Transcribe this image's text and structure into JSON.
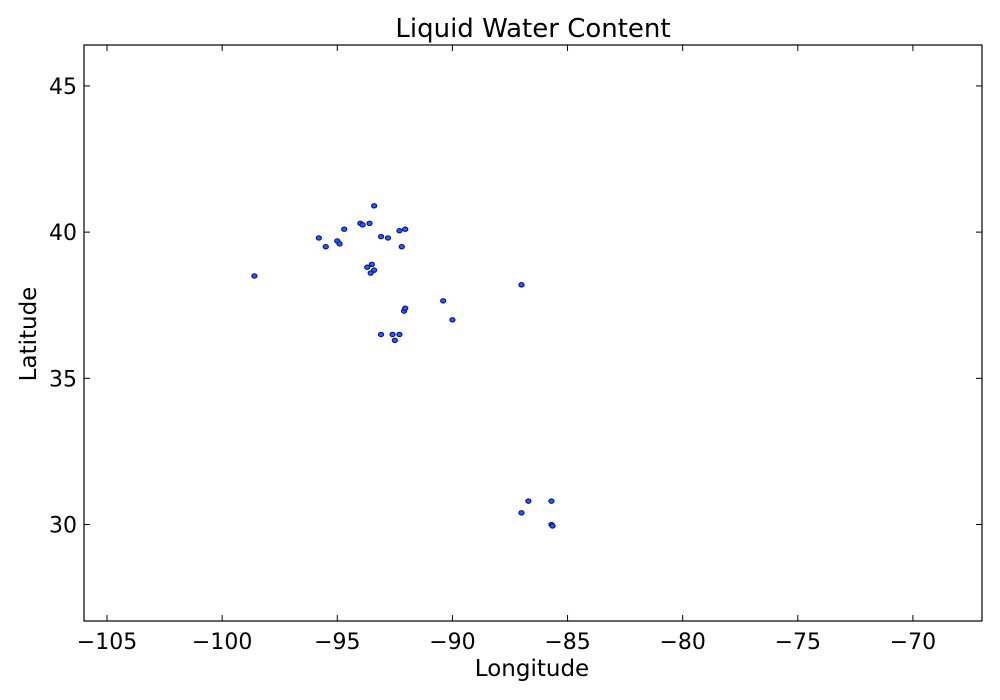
{
  "chart_data": {
    "type": "scatter",
    "title": "Liquid Water Content",
    "xlabel": "Longitude",
    "ylabel": "Latitude",
    "xlim": [
      -106,
      -67
    ],
    "ylim": [
      26.7,
      46.4
    ],
    "xticks": [
      -105,
      -100,
      -95,
      -90,
      -85,
      -80,
      -75,
      -70
    ],
    "xtick_labels": [
      "−105",
      "−100",
      "−95",
      "−90",
      "−85",
      "−80",
      "−75",
      "−70"
    ],
    "yticks": [
      30,
      35,
      40,
      45
    ],
    "ytick_labels": [
      "30",
      "35",
      "40",
      "45"
    ],
    "grid": false,
    "colors": {
      "fill": "#1f5fff",
      "edge": "#000080"
    },
    "series": [
      {
        "points": [
          [
            -98.6,
            38.5
          ],
          [
            -95.8,
            39.8
          ],
          [
            -95.5,
            39.5
          ],
          [
            -95.0,
            39.7
          ],
          [
            -94.9,
            39.6
          ],
          [
            -94.7,
            40.1
          ],
          [
            -94.0,
            40.3
          ],
          [
            -93.9,
            40.25
          ],
          [
            -93.6,
            40.3
          ],
          [
            -93.4,
            40.9
          ],
          [
            -93.1,
            39.85
          ],
          [
            -92.8,
            39.8
          ],
          [
            -92.3,
            40.05
          ],
          [
            -92.2,
            39.5
          ],
          [
            -92.05,
            40.1
          ],
          [
            -93.7,
            38.8
          ],
          [
            -93.5,
            38.9
          ],
          [
            -93.4,
            38.7
          ],
          [
            -93.55,
            38.6
          ],
          [
            -92.1,
            37.3
          ],
          [
            -92.05,
            37.4
          ],
          [
            -90.4,
            37.65
          ],
          [
            -90.0,
            37.0
          ],
          [
            -93.1,
            36.5
          ],
          [
            -92.6,
            36.5
          ],
          [
            -92.5,
            36.3
          ],
          [
            -92.3,
            36.5
          ],
          [
            -87.0,
            38.2
          ],
          [
            -86.7,
            30.8
          ],
          [
            -87.0,
            30.4
          ],
          [
            -85.7,
            30.8
          ],
          [
            -85.7,
            30.0
          ],
          [
            -85.65,
            29.95
          ]
        ]
      }
    ]
  }
}
